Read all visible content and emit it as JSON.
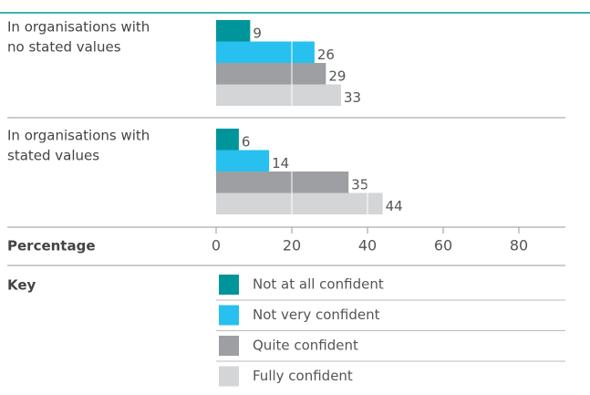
{
  "chart_data": {
    "type": "bar",
    "orientation": "horizontal",
    "categories": [
      [
        "In organisations with",
        "no stated values"
      ],
      [
        "In organisations with",
        "stated values"
      ]
    ],
    "series": [
      {
        "name": "Not at all confident",
        "color": "#00959a",
        "values": [
          9,
          6
        ]
      },
      {
        "name": "Not very confident",
        "color": "#27c0ef",
        "values": [
          26,
          14
        ]
      },
      {
        "name": "Quite confident",
        "color": "#9d9fa2",
        "values": [
          29,
          35
        ]
      },
      {
        "name": "Fully confident",
        "color": "#d4d5d6",
        "values": [
          33,
          44
        ]
      }
    ],
    "xlabel": "Percentage",
    "legend_title": "Key",
    "xlim": [
      0,
      80
    ],
    "xticks": [
      0,
      20,
      40,
      60,
      80
    ],
    "grid": true
  }
}
